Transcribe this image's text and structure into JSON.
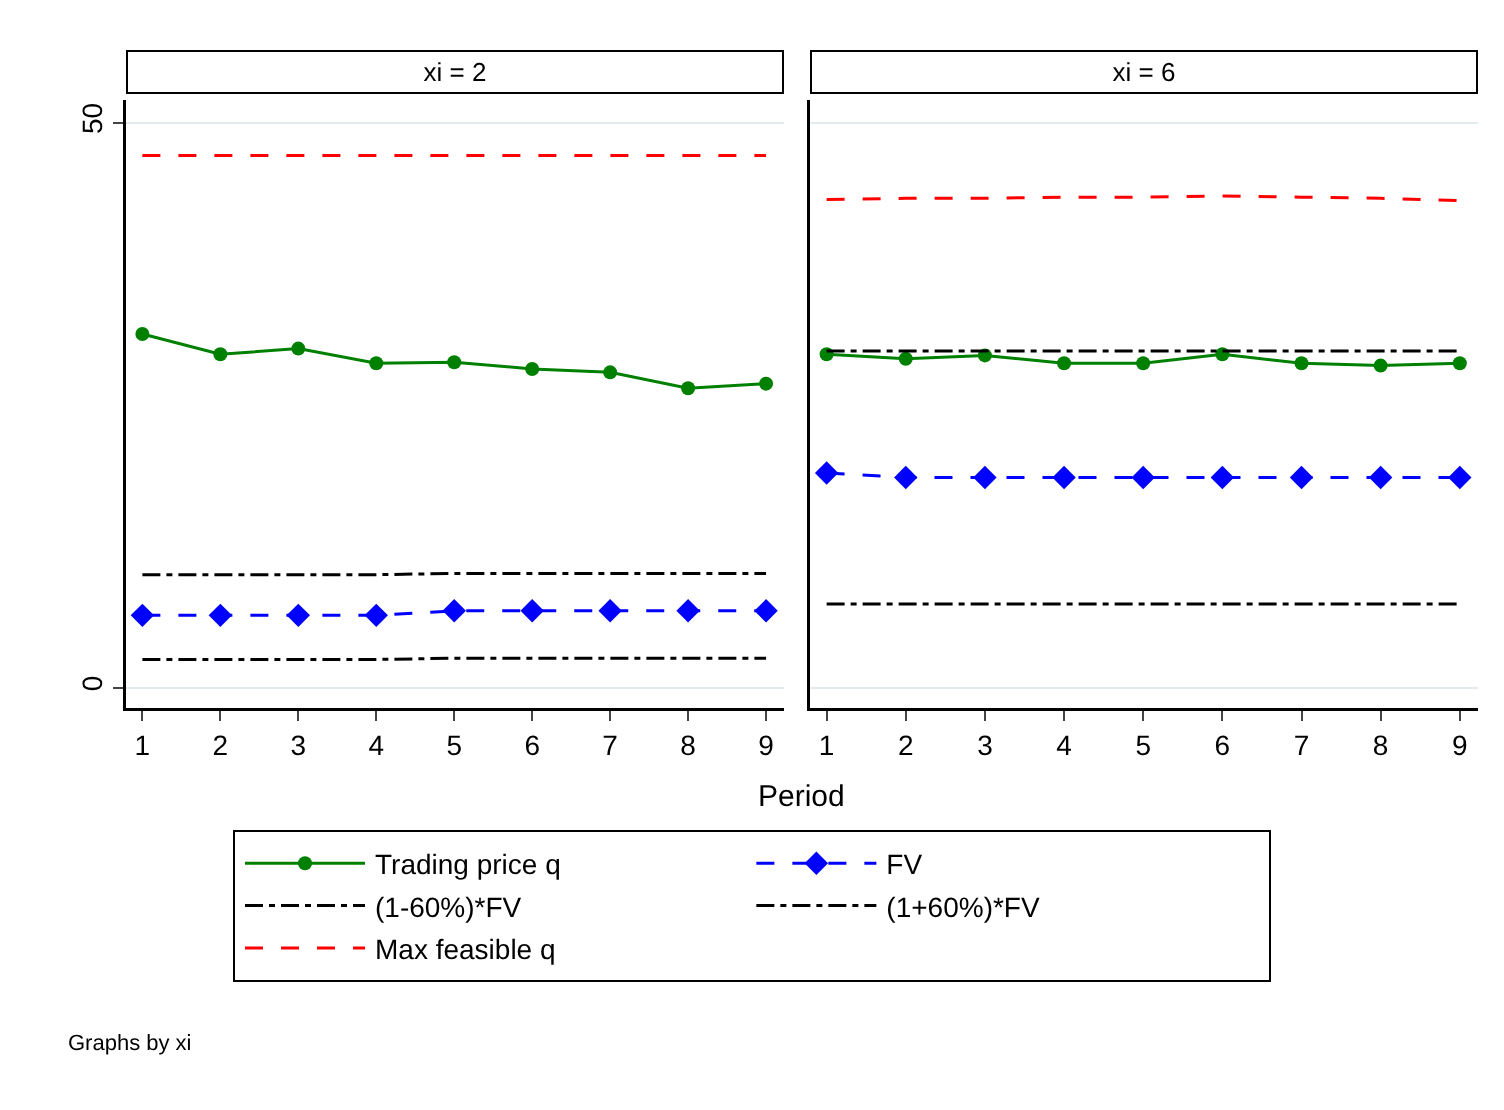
{
  "chart_data": [
    {
      "type": "line",
      "title": "xi = 2",
      "xlabel": "Period",
      "x": [
        1,
        2,
        3,
        4,
        5,
        6,
        7,
        8,
        9
      ],
      "xlim": [
        0.79,
        9.23
      ],
      "xticks": [
        1,
        2,
        3,
        4,
        5,
        6,
        7,
        8,
        9
      ],
      "ylim": [
        -1.8,
        52
      ],
      "yticks": [
        0,
        50
      ],
      "grid": "y",
      "legend": "bottom",
      "annotations": [
        "Graphs by xi"
      ],
      "series": [
        {
          "name": "Trading price q",
          "color": "#008000",
          "marker": "circle",
          "line_style": "solid",
          "values": [
            31.3,
            29.5,
            30.0,
            28.7,
            28.8,
            28.2,
            27.9,
            26.5,
            26.9
          ]
        },
        {
          "name": "FV",
          "color": "#0000ff",
          "marker": "diamond",
          "line_style": "dashed",
          "values": [
            6.4,
            6.4,
            6.4,
            6.4,
            6.8,
            6.8,
            6.8,
            6.8,
            6.8
          ]
        },
        {
          "name": "(1-60%)*FV",
          "color": "#000000",
          "marker": "none",
          "line_style": "dotted",
          "values": [
            2.5,
            2.5,
            2.5,
            2.5,
            2.6,
            2.6,
            2.6,
            2.6,
            2.6
          ]
        },
        {
          "name": "(1+60%)*FV",
          "color": "#000000",
          "marker": "none",
          "line_style": "dotted",
          "values": [
            10.0,
            10.0,
            10.0,
            10.0,
            10.1,
            10.1,
            10.1,
            10.1,
            10.1
          ]
        },
        {
          "name": "Max feasible q",
          "color": "#ff0000",
          "marker": "none",
          "line_style": "dashed",
          "values": [
            47.1,
            47.1,
            47.1,
            47.1,
            47.1,
            47.1,
            47.1,
            47.1,
            47.1
          ]
        }
      ]
    },
    {
      "type": "line",
      "title": "xi = 6",
      "x": [
        1,
        2,
        3,
        4,
        5,
        6,
        7,
        8,
        9
      ],
      "xlim": [
        0.79,
        9.23
      ],
      "xticks": [
        1,
        2,
        3,
        4,
        5,
        6,
        7,
        8,
        9
      ],
      "ylim": [
        -1.8,
        52
      ],
      "yticks": [
        {
          "value": 0,
          "label": null
        },
        {
          "value": 50,
          "label": null
        }
      ],
      "tick_labels": "x",
      "grid": "y",
      "legend": false,
      "series": [
        {
          "color": "#008000",
          "marker": "circle",
          "line_style": "solid",
          "values": [
            29.5,
            29.1,
            29.4,
            28.7,
            28.7,
            29.5,
            28.7,
            28.5,
            28.7
          ]
        },
        {
          "color": "#0000ff",
          "marker": "diamond",
          "line_style": "dashed",
          "values": [
            19.0,
            18.6,
            18.6,
            18.6,
            18.6,
            18.6,
            18.6,
            18.6,
            18.6
          ]
        },
        {
          "color": "#000000",
          "marker": "none",
          "line_style": "dotted",
          "values": [
            7.4,
            7.4,
            7.4,
            7.4,
            7.4,
            7.4,
            7.4,
            7.4,
            7.4
          ]
        },
        {
          "color": "#000000",
          "marker": "none",
          "line_style": "dotted",
          "values": [
            29.8,
            29.8,
            29.8,
            29.8,
            29.8,
            29.8,
            29.8,
            29.8,
            29.8
          ]
        },
        {
          "color": "#ff0000",
          "marker": "none",
          "line_style": "dashed",
          "values": [
            43.2,
            43.3,
            43.3,
            43.4,
            43.4,
            43.5,
            43.4,
            43.3,
            43.1
          ]
        }
      ]
    }
  ]
}
